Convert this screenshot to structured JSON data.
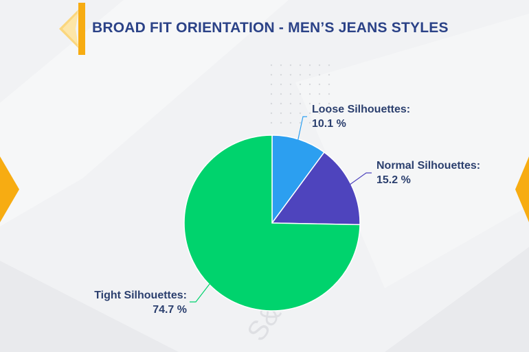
{
  "page": {
    "title": "BROAD FIT ORIENTATION - MEN’S JEANS STYLES",
    "accent_color": "#f7ac12",
    "title_color": "#2b4287",
    "background_color": "#f1f2f4",
    "watermark": "S&J Reports"
  },
  "chart_data": {
    "type": "pie",
    "title": "",
    "categories": [
      "Loose Silhouettes",
      "Normal Silhouettes",
      "Tight Silhouettes"
    ],
    "values": [
      10.1,
      15.2,
      74.7
    ],
    "unit": "%",
    "colors": [
      "#2c9ff0",
      "#4e44bd",
      "#00d36d"
    ],
    "start_angle": "12 o'clock",
    "direction": "clockwise",
    "labels": [
      {
        "name": "Loose Silhouettes:",
        "value": "10.1 %"
      },
      {
        "name": "Normal Silhouettes:",
        "value": "15.2 %"
      },
      {
        "name": "Tight Silhouettes:",
        "value": "74.7 %"
      }
    ]
  }
}
